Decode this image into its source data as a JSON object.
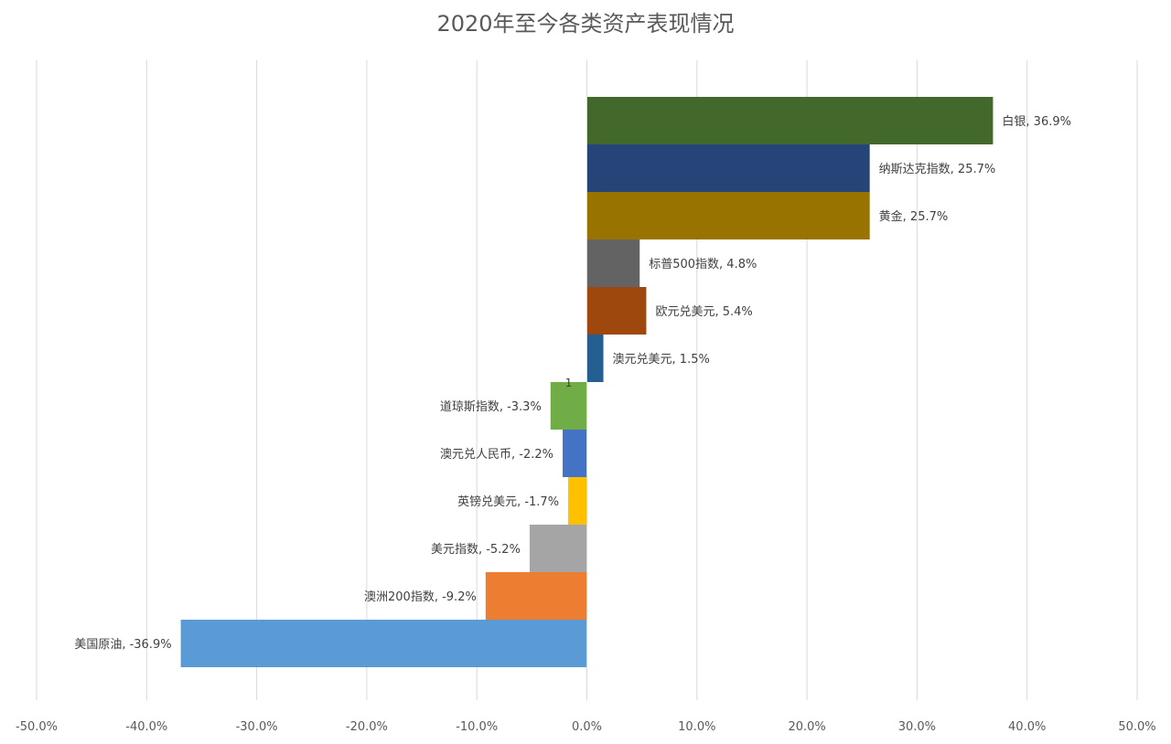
{
  "chart_data": {
    "type": "bar",
    "orientation": "horizontal",
    "title": "2020年至今各类资产表现情况",
    "xlabel": "",
    "ylabel": "",
    "xlim": [
      -50,
      50
    ],
    "xticks": [
      -50,
      -40,
      -30,
      -20,
      -10,
      0,
      10,
      20,
      30,
      40,
      50
    ],
    "tick_labels": [
      "-50.0%",
      "-40.0%",
      "-30.0%",
      "-20.0%",
      "-10.0%",
      "0.0%",
      "10.0%",
      "20.0%",
      "30.0%",
      "40.0%",
      "50.0%"
    ],
    "grid": true,
    "legend": "none",
    "annotation": "1",
    "categories": [
      "白银",
      "纳斯达克指数",
      "黄金",
      "标普500指数",
      "欧元兑美元",
      "澳元兑美元",
      "道琼斯指数",
      "澳元兑人民币",
      "英镑兑美元",
      "美元指数",
      "澳洲200指数",
      "美国原油"
    ],
    "values": [
      36.9,
      25.7,
      25.7,
      4.8,
      5.4,
      1.5,
      -3.3,
      -2.2,
      -1.7,
      -5.2,
      -9.2,
      -36.9
    ],
    "data_labels": [
      "白银, 36.9%",
      "纳斯达克指数, 25.7%",
      "黄金, 25.7%",
      "标普500指数, 4.8%",
      "欧元兑美元, 5.4%",
      "澳元兑美元, 1.5%",
      "道琼斯指数, -3.3%",
      "澳元兑人民币, -2.2%",
      "英镑兑美元, -1.7%",
      "美元指数, -5.2%",
      "澳洲200指数, -9.2%",
      "美国原油, -36.9%"
    ],
    "colors": [
      "#43682B",
      "#264478",
      "#997300",
      "#636363",
      "#9E480E",
      "#255E91",
      "#70AD47",
      "#4472C4",
      "#FFC000",
      "#A5A5A5",
      "#ED7D31",
      "#5B9BD5"
    ]
  }
}
